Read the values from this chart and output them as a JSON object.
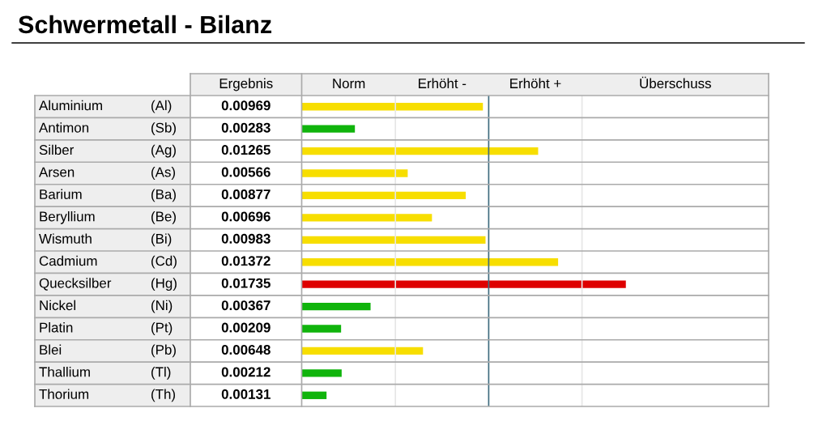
{
  "chart_data": {
    "type": "bar",
    "orientation": "horizontal",
    "title": "Schwermetall - Bilanz",
    "categories": [
      "Aluminium",
      "Antimon",
      "Silber",
      "Arsen",
      "Barium",
      "Beryllium",
      "Wismuth",
      "Cadmium",
      "Quecksilber",
      "Nickel",
      "Platin",
      "Blei",
      "Thallium",
      "Thorium"
    ],
    "y2_categories": [
      "(Al)",
      "(Sb)",
      "(Ag)",
      "(As)",
      "(Ba)",
      "(Be)",
      "(Bi)",
      "(Cd)",
      "(Hg)",
      "(Ni)",
      "(Pt)",
      "(Pb)",
      "(Tl)",
      "(Th)"
    ],
    "values": [
      0.00969,
      0.00283,
      0.01265,
      0.00566,
      0.00877,
      0.00696,
      0.00983,
      0.01372,
      0.01735,
      0.00367,
      0.00209,
      0.00648,
      0.00212,
      0.00131
    ],
    "colors": [
      "#f7de00",
      "#10b40c",
      "#f7de00",
      "#f7de00",
      "#f7de00",
      "#f7de00",
      "#f7de00",
      "#f7de00",
      "#de0000",
      "#10b40c",
      "#10b40c",
      "#f7de00",
      "#10b40c",
      "#10b40c"
    ],
    "data_labels": true,
    "xlim": [
      0,
      0.025
    ],
    "ref_lines": [
      {
        "axis": "x",
        "value": 0.005,
        "color": "#e6e6e6"
      },
      {
        "axis": "x",
        "value": 0.01,
        "color": "#3e6b7e"
      },
      {
        "axis": "x",
        "value": 0.015,
        "color": "#e6e6e6"
      }
    ],
    "annotations": [
      "Ergebnis",
      "Norm",
      "Erhöht -",
      "Erhöht +",
      "Überschuss"
    ]
  }
}
